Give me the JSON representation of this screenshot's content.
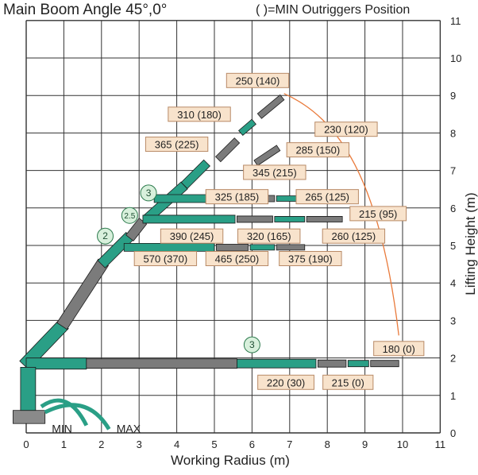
{
  "title": "Main Boom Angle 45°,0°",
  "subtitle": "( )=MIN Outriggers Position",
  "x_axis": {
    "label": "Working Radius (m)",
    "ticks": [
      "0",
      "1",
      "2",
      "3",
      "4",
      "5",
      "6",
      "7",
      "8",
      "9",
      "10",
      "11"
    ]
  },
  "y_axis": {
    "label": "Lifting Height (m)",
    "ticks": [
      "0",
      "1",
      "2",
      "3",
      "4",
      "5",
      "6",
      "7",
      "8",
      "9",
      "10",
      "11"
    ]
  },
  "outrigger_labels": {
    "min": "MIN",
    "max": "MAX"
  },
  "colors": {
    "boom": "#2a9f86",
    "boom_dark": "#1e7d68",
    "jib": "#7b7b7b",
    "label_fill": "#f8e3cc",
    "label_border": "#b88a66",
    "curve": "#e97a3b",
    "grid": "#333333",
    "badge_fill": "#d8f0dc"
  },
  "section_badges": [
    {
      "text": "2",
      "x": 2.1,
      "y": 5.25
    },
    {
      "text": "2.5",
      "x": 2.75,
      "y": 5.8
    },
    {
      "text": "3",
      "x": 3.25,
      "y": 6.4
    },
    {
      "text": "3",
      "x": 6.0,
      "y": 2.35
    }
  ],
  "load_labels": [
    {
      "text": "250 (140)",
      "x": 6.15,
      "y": 9.4
    },
    {
      "text": "310 (180)",
      "x": 4.6,
      "y": 8.5
    },
    {
      "text": "230 (120)",
      "x": 8.5,
      "y": 8.1
    },
    {
      "text": "365 (225)",
      "x": 4.0,
      "y": 7.7
    },
    {
      "text": "285 (150)",
      "x": 7.75,
      "y": 7.55
    },
    {
      "text": "345 (215)",
      "x": 6.6,
      "y": 6.95
    },
    {
      "text": "325 (185)",
      "x": 5.6,
      "y": 6.3
    },
    {
      "text": "265 (125)",
      "x": 8.0,
      "y": 6.3
    },
    {
      "text": "215 (95)",
      "x": 9.35,
      "y": 5.85
    },
    {
      "text": "390 (245)",
      "x": 4.4,
      "y": 5.25
    },
    {
      "text": "320 (165)",
      "x": 6.45,
      "y": 5.25
    },
    {
      "text": "260 (125)",
      "x": 8.7,
      "y": 5.25
    },
    {
      "text": "570 (370)",
      "x": 3.7,
      "y": 4.65
    },
    {
      "text": "465 (250)",
      "x": 5.6,
      "y": 4.65
    },
    {
      "text": "375 (190)",
      "x": 7.55,
      "y": 4.65
    },
    {
      "text": "180 (0)",
      "x": 9.9,
      "y": 2.25
    },
    {
      "text": "220 (30)",
      "x": 6.9,
      "y": 1.35
    },
    {
      "text": "215 (0)",
      "x": 8.55,
      "y": 1.35
    }
  ]
}
